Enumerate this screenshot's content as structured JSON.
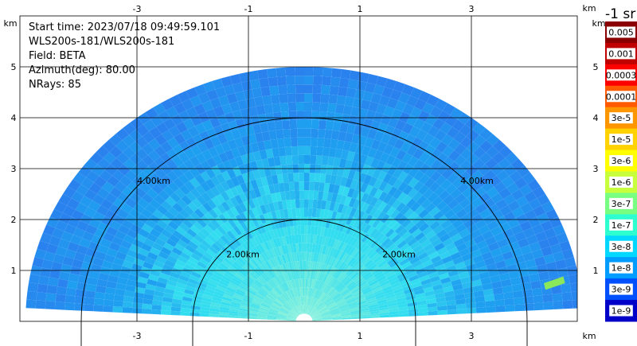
{
  "info": {
    "start_time": "Start time: 2023/07/18 09:49:59.101",
    "instrument": "WLS200s-181/WLS200s-181",
    "field": "Field: BETA",
    "azimuth": "Azimuth(deg): 80.00",
    "nrays": "NRays: 85"
  },
  "colorbar": {
    "title": "-1 sr",
    "labels": [
      "0.005",
      "0.001",
      "0.0003",
      "0.0001",
      "3e-5",
      "1e-5",
      "3e-6",
      "1e-6",
      "3e-7",
      "1e-7",
      "3e-8",
      "1e-8",
      "3e-9",
      "1e-9"
    ],
    "colors": [
      "#8a0000",
      "#c00000",
      "#ff0000",
      "#ff5a00",
      "#ff9600",
      "#ffd200",
      "#ffff00",
      "#c8ff3c",
      "#78ff82",
      "#2effd0",
      "#00d8ff",
      "#009cff",
      "#0050ff",
      "#0000c8"
    ]
  },
  "chart_data": {
    "type": "heatmap",
    "subtype": "rhi-range-height",
    "field": "BETA",
    "unit_label": "km",
    "x_ticks": [
      -3,
      -1,
      1,
      3
    ],
    "y_ticks": [
      1,
      2,
      3,
      4,
      5
    ],
    "xlim": [
      -5.0,
      5.0
    ],
    "ylim": [
      0.0,
      5.7
    ],
    "range_ring_labels": [
      "2.00km",
      "4.00km"
    ],
    "range_rings_km": [
      2,
      4
    ],
    "max_range_km": 5.0,
    "nrays": 85,
    "azimuth_deg": 80.0,
    "grid": true,
    "palette": {
      "near": "#7ff0d8",
      "mid": "#33ddf0",
      "far": "#1f9ff0",
      "edge": "#2a82ee",
      "hotspot": "#8be85a"
    }
  }
}
